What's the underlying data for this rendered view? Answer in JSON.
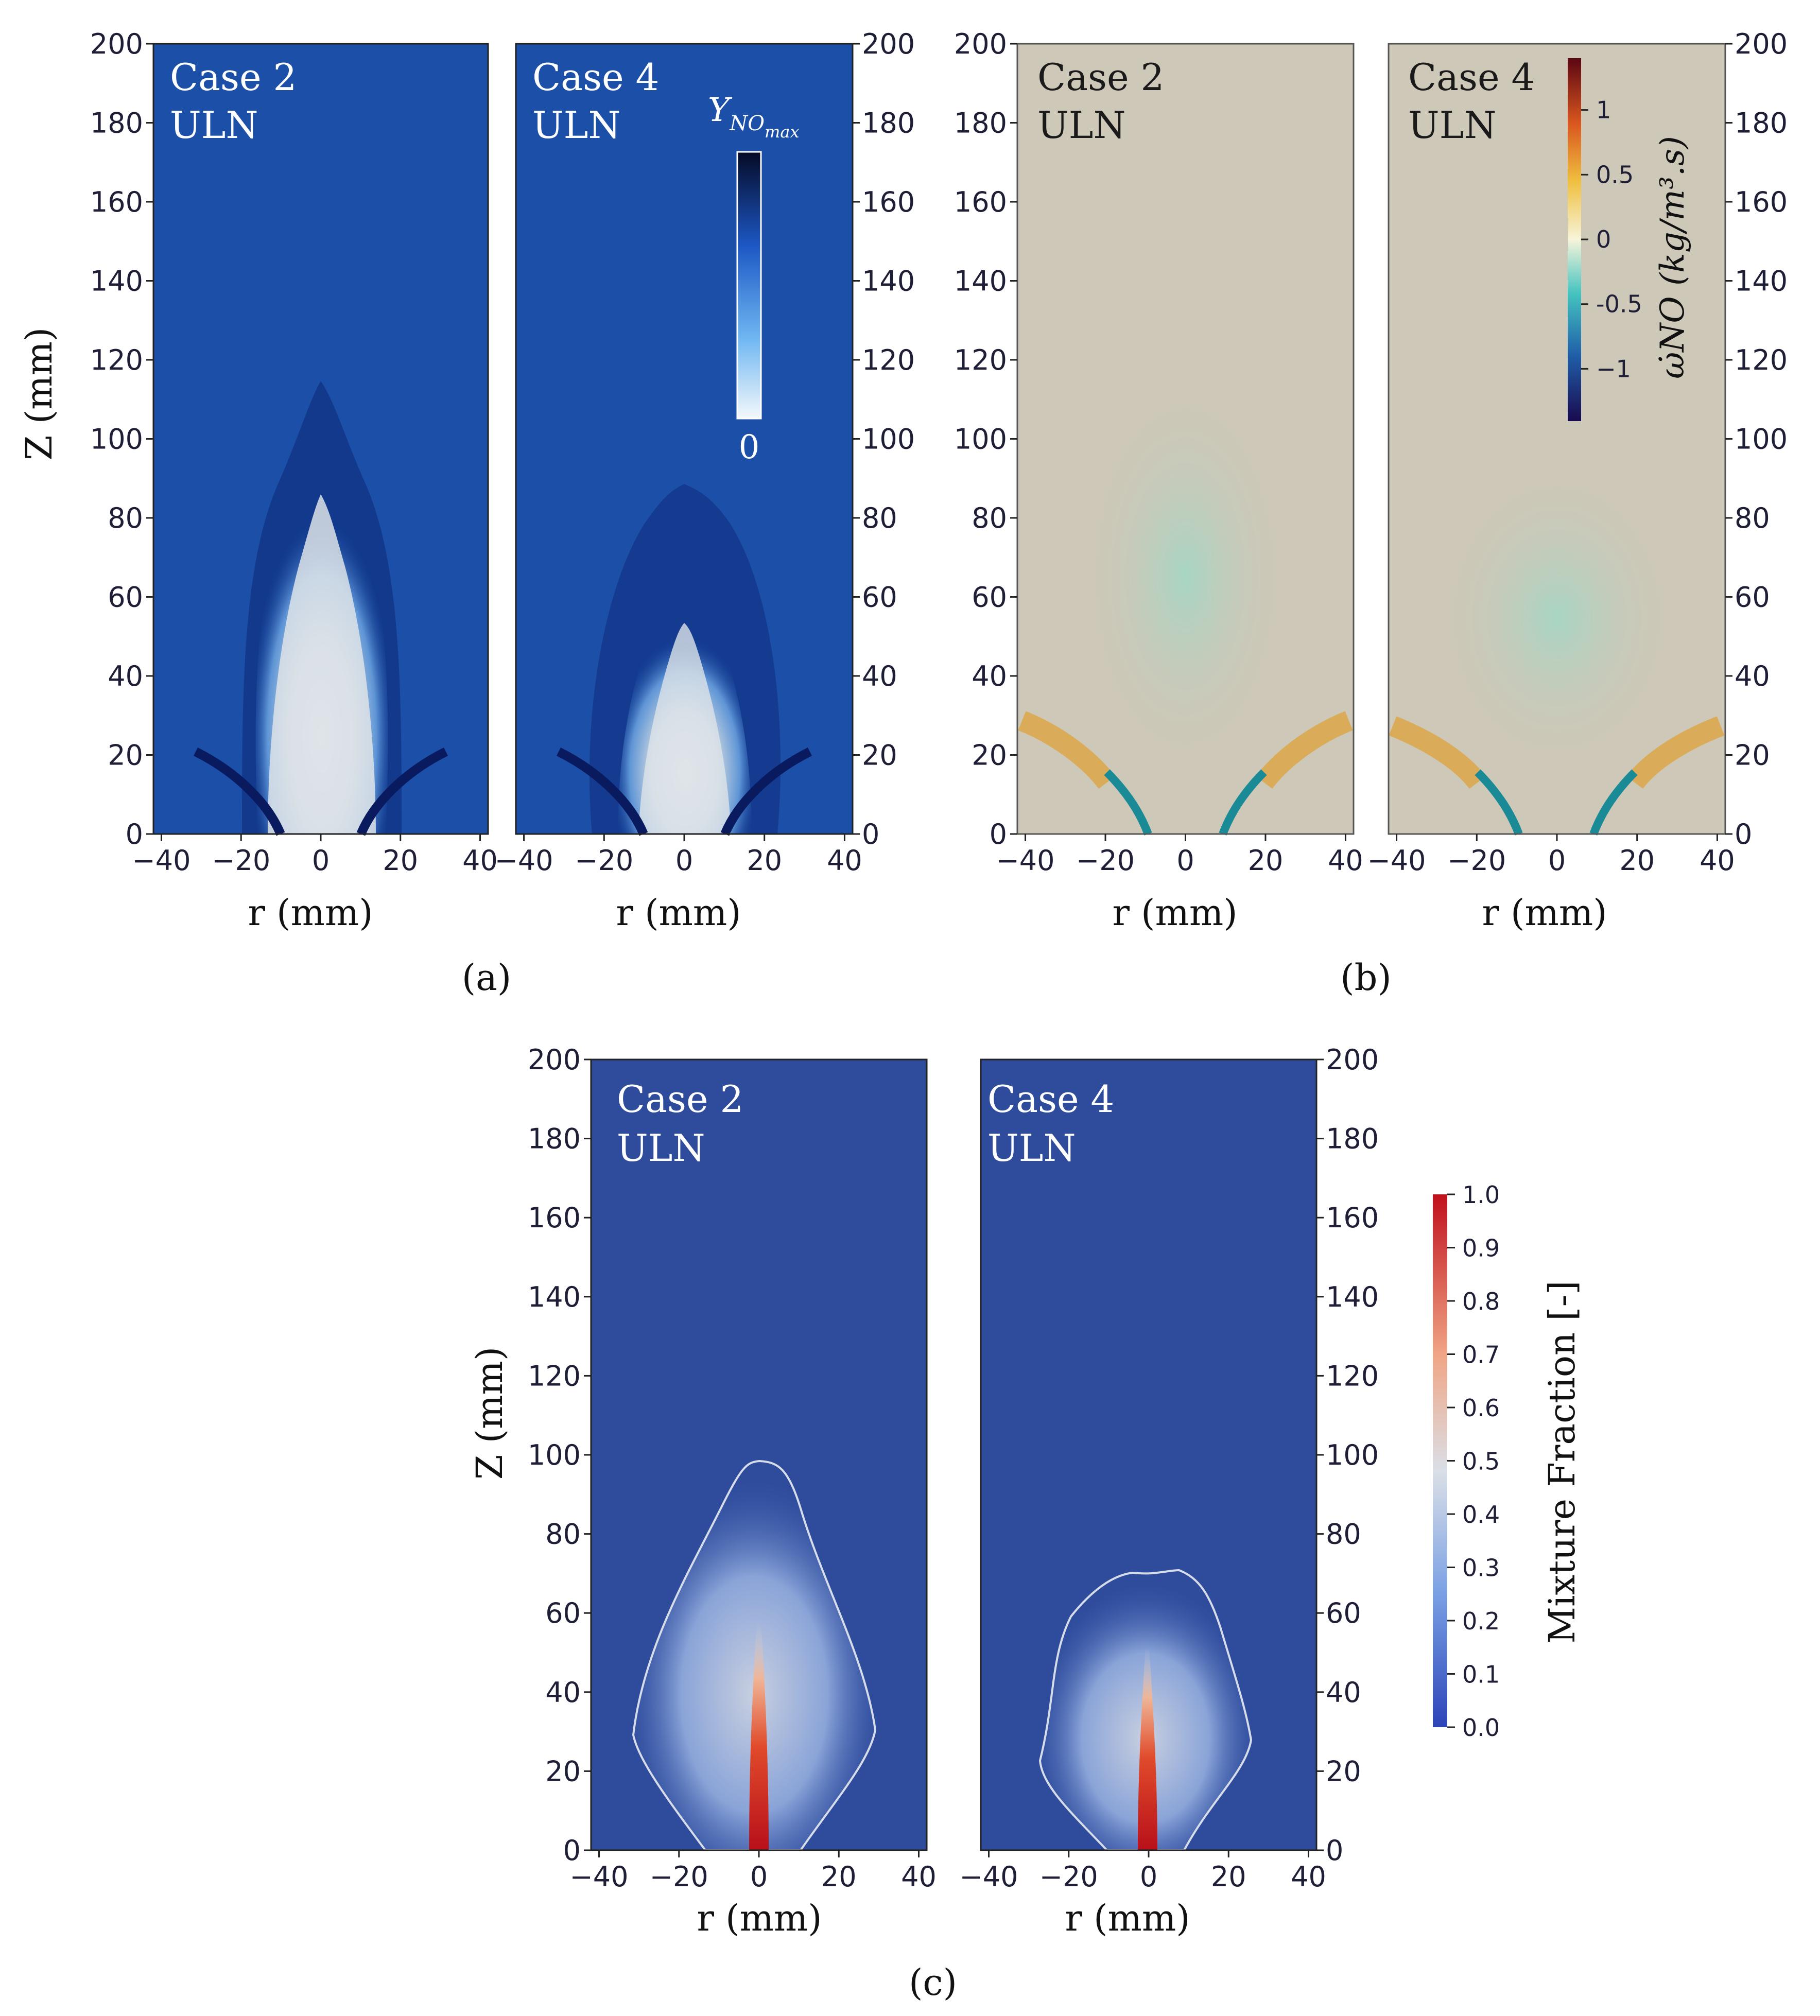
{
  "panels": [
    {
      "id": "a",
      "label": "(a)"
    },
    {
      "id": "b",
      "label": "(b)"
    },
    {
      "id": "c",
      "label": "(c)"
    }
  ],
  "plots": {
    "a_left": {
      "case": "Case 2",
      "sub": "ULN"
    },
    "a_right": {
      "case": "Case 4",
      "sub": "ULN"
    },
    "b_left": {
      "case": "Case 2",
      "sub": "ULN"
    },
    "b_right": {
      "case": "Case 4",
      "sub": "ULN"
    },
    "c_left": {
      "case": "Case 2",
      "sub": "ULN"
    },
    "c_right": {
      "case": "Case 4",
      "sub": "ULN"
    }
  },
  "axes": {
    "xlabel": "r (mm)",
    "ylabel": "Z (mm)",
    "xticks": [
      "−40",
      "−20",
      "0",
      "20",
      "40"
    ],
    "yticks": [
      "0",
      "20",
      "40",
      "60",
      "80",
      "100",
      "120",
      "140",
      "160",
      "180",
      "200"
    ]
  },
  "colorbars": {
    "a": {
      "title_main": "Y",
      "title_sub": "NO",
      "title_subsub": "max",
      "bottom_label": "0"
    },
    "b": {
      "ticks": [
        "1",
        "0.5",
        "0",
        "-0.5",
        "−1"
      ],
      "label": "ω̇NO (kg/m³.s)"
    },
    "c": {
      "ticks": [
        "1.0",
        "0.9",
        "0.8",
        "0.7",
        "0.6",
        "0.5",
        "0.4",
        "0.3",
        "0.2",
        "0.1",
        "0.0"
      ],
      "label": "Mixture Fraction [-]"
    }
  },
  "colors": {
    "no_background": "#1b4fa8",
    "no_dark": "#0a1a5e",
    "no_light": "#dfe6ec",
    "rate_background": "#cdc8b8",
    "rate_positive": "#e0a030",
    "rate_negative": "#5ec9b7",
    "mf_background": "#2f4c9c",
    "mf_high": "#c81a1a"
  }
}
